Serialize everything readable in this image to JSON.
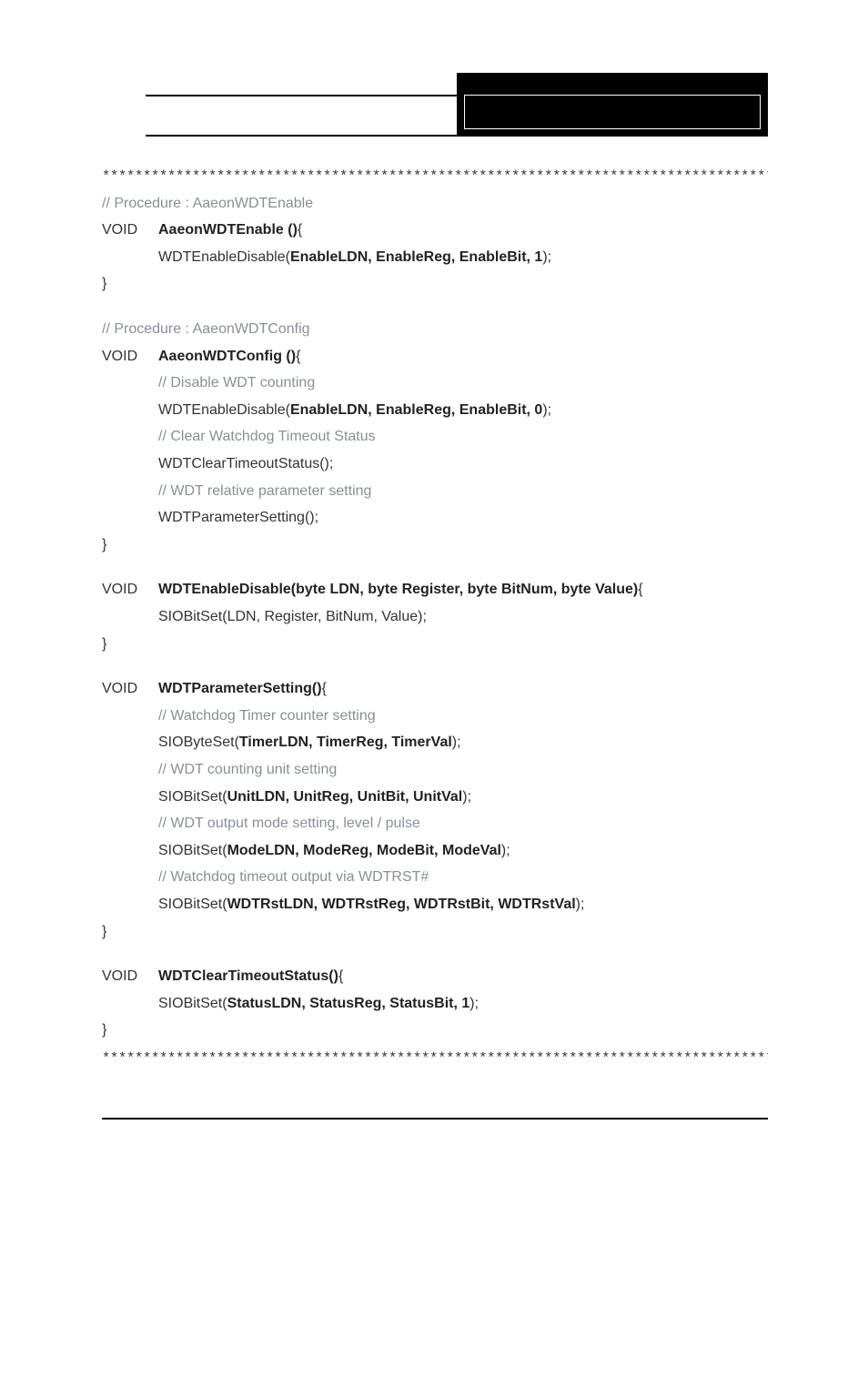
{
  "stars": "*************************************************************************************",
  "proc1": {
    "comment": "// Procedure : AaeonWDTEnable",
    "kw": "VOID",
    "sig": "AaeonWDTEnable ()",
    "brace": "{",
    "line1_pre": "WDTEnableDisable(",
    "line1_args": "EnableLDN, EnableReg, EnableBit, 1",
    "line1_post": ");",
    "close": "}"
  },
  "proc2": {
    "comment": "// Procedure : AaeonWDTConfig",
    "kw": "VOID",
    "sig": "AaeonWDTConfig ()",
    "brace": "{",
    "c1": "// Disable WDT counting",
    "l1_pre": "WDTEnableDisable(",
    "l1_args": "EnableLDN, EnableReg, EnableBit, 0",
    "l1_post": ");",
    "c2": "// Clear Watchdog Timeout Status",
    "l2": "WDTClearTimeoutStatus();",
    "c3": "// WDT relative parameter setting",
    "l3": "WDTParameterSetting();",
    "close": "}"
  },
  "proc3": {
    "kw": "VOID",
    "sig": "WDTEnableDisable(byte LDN, byte Register, byte BitNum, byte Value)",
    "brace": "{",
    "l1": "SIOBitSet(LDN, Register, BitNum, Value);",
    "close": "}"
  },
  "proc4": {
    "kw": "VOID",
    "sig": "WDTParameterSetting()",
    "brace": "{",
    "c1": "// Watchdog Timer counter setting",
    "l1_pre": "SIOByteSet(",
    "l1_args": "TimerLDN, TimerReg, TimerVal",
    "l1_post": ");",
    "c2": "// WDT counting unit setting",
    "l2_pre": "SIOBitSet(",
    "l2_args": "UnitLDN, UnitReg, UnitBit, UnitVal",
    "l2_post": ");",
    "c3": "// WDT output mode setting, level / pulse",
    "l3_pre": "SIOBitSet(",
    "l3_args": "ModeLDN, ModeReg, ModeBit, ModeVal",
    "l3_post": ");",
    "c4": "// Watchdog timeout output via WDTRST#",
    "l4_pre": "SIOBitSet(",
    "l4_args": "WDTRstLDN, WDTRstReg, WDTRstBit, WDTRstVal",
    "l4_post": ");",
    "close": "}"
  },
  "proc5": {
    "kw": "VOID",
    "sig": "WDTClearTimeoutStatus()",
    "brace": "{",
    "l1_pre": "SIOBitSet(",
    "l1_args": "StatusLDN, StatusReg, StatusBit, 1",
    "l1_post": ");",
    "close": "}"
  }
}
